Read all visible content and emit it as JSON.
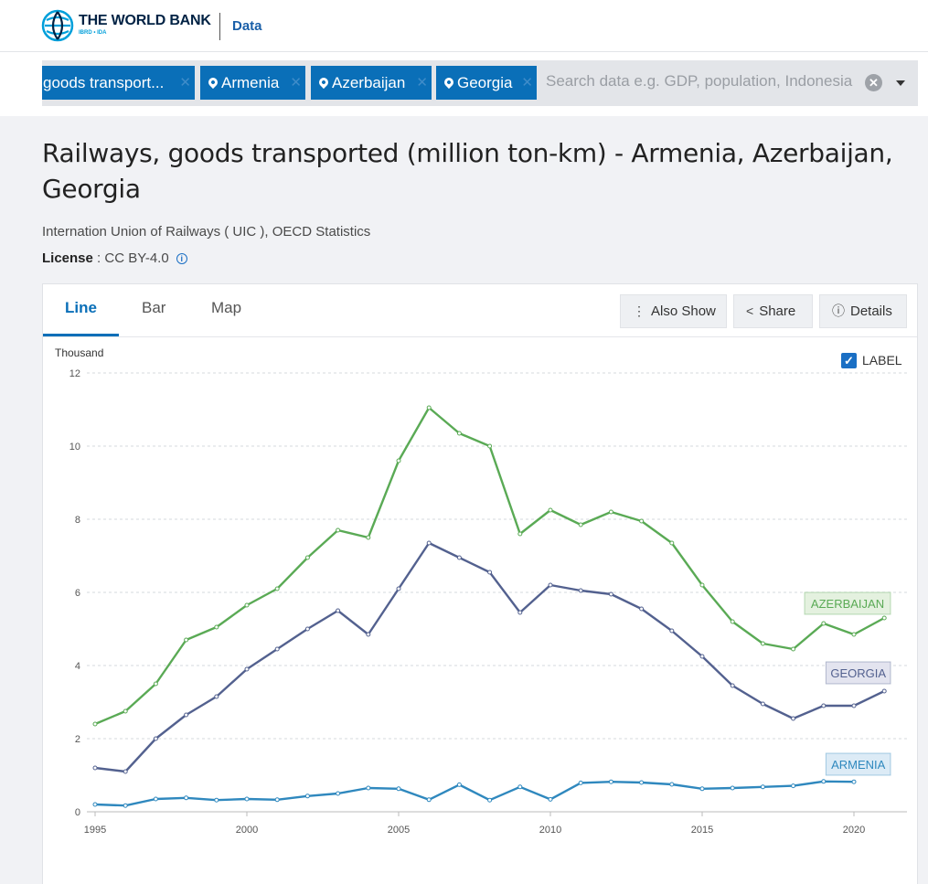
{
  "header": {
    "brand": "THE WORLD BANK",
    "brand_sub": "IBRD • IDA",
    "section": "Data"
  },
  "search": {
    "chips": [
      {
        "label": "goods transport...",
        "has_pin": false
      },
      {
        "label": "Armenia",
        "has_pin": true
      },
      {
        "label": "Azerbaijan",
        "has_pin": true
      },
      {
        "label": "Georgia",
        "has_pin": true
      }
    ],
    "placeholder": "Search data e.g. GDP, population, Indonesia"
  },
  "page": {
    "title": "Railways, goods transported (million ton-km) - Armenia, Azerbaijan, Georgia",
    "source": "Internation Union of Railways ( UIC ), OECD Statistics",
    "license_label": "License",
    "license_value": " : CC BY-4.0"
  },
  "tabs": [
    "Line",
    "Bar",
    "Map"
  ],
  "actions": {
    "also_show": "Also Show",
    "share": "Share",
    "details": "Details"
  },
  "label_toggle": "LABEL",
  "colors": {
    "accent": "#0a6fb8",
    "azerbaijan": "#5aaa55",
    "georgia": "#53618f",
    "armenia": "#2f88be"
  },
  "chart_data": {
    "type": "line",
    "ylabel": "Thousand",
    "ylim": [
      0,
      12
    ],
    "yticks": [
      0,
      2,
      4,
      6,
      8,
      10,
      12
    ],
    "xticks": [
      1995,
      2000,
      2005,
      2010,
      2015,
      2020
    ],
    "x": [
      1995,
      1996,
      1997,
      1998,
      1999,
      2000,
      2001,
      2002,
      2003,
      2004,
      2005,
      2006,
      2007,
      2008,
      2009,
      2010,
      2011,
      2012,
      2013,
      2014,
      2015,
      2016,
      2017,
      2018,
      2019,
      2020,
      2021
    ],
    "grid": true,
    "series": [
      {
        "name": "AZERBAIJAN",
        "values": [
          2.4,
          2.75,
          3.5,
          4.7,
          5.05,
          5.65,
          6.1,
          6.95,
          7.7,
          7.5,
          9.6,
          11.05,
          10.35,
          10.0,
          7.6,
          8.25,
          7.85,
          8.2,
          7.95,
          7.35,
          6.2,
          5.2,
          4.6,
          4.45,
          5.15,
          4.85,
          5.3
        ]
      },
      {
        "name": "GEORGIA",
        "values": [
          1.2,
          1.1,
          2.0,
          2.65,
          3.15,
          3.9,
          4.45,
          5.0,
          5.5,
          4.85,
          6.1,
          7.35,
          6.95,
          6.55,
          5.45,
          6.2,
          6.05,
          5.95,
          5.55,
          4.95,
          4.25,
          3.45,
          2.95,
          2.55,
          2.9,
          2.9,
          3.3
        ]
      },
      {
        "name": "ARMENIA",
        "values": [
          0.2,
          0.17,
          0.35,
          0.38,
          0.32,
          0.35,
          0.33,
          0.43,
          0.5,
          0.65,
          0.63,
          0.33,
          0.74,
          0.32,
          0.68,
          0.34,
          0.79,
          0.82,
          0.8,
          0.75,
          0.63,
          0.65,
          0.68,
          0.71,
          0.83,
          0.82,
          null
        ]
      }
    ]
  }
}
